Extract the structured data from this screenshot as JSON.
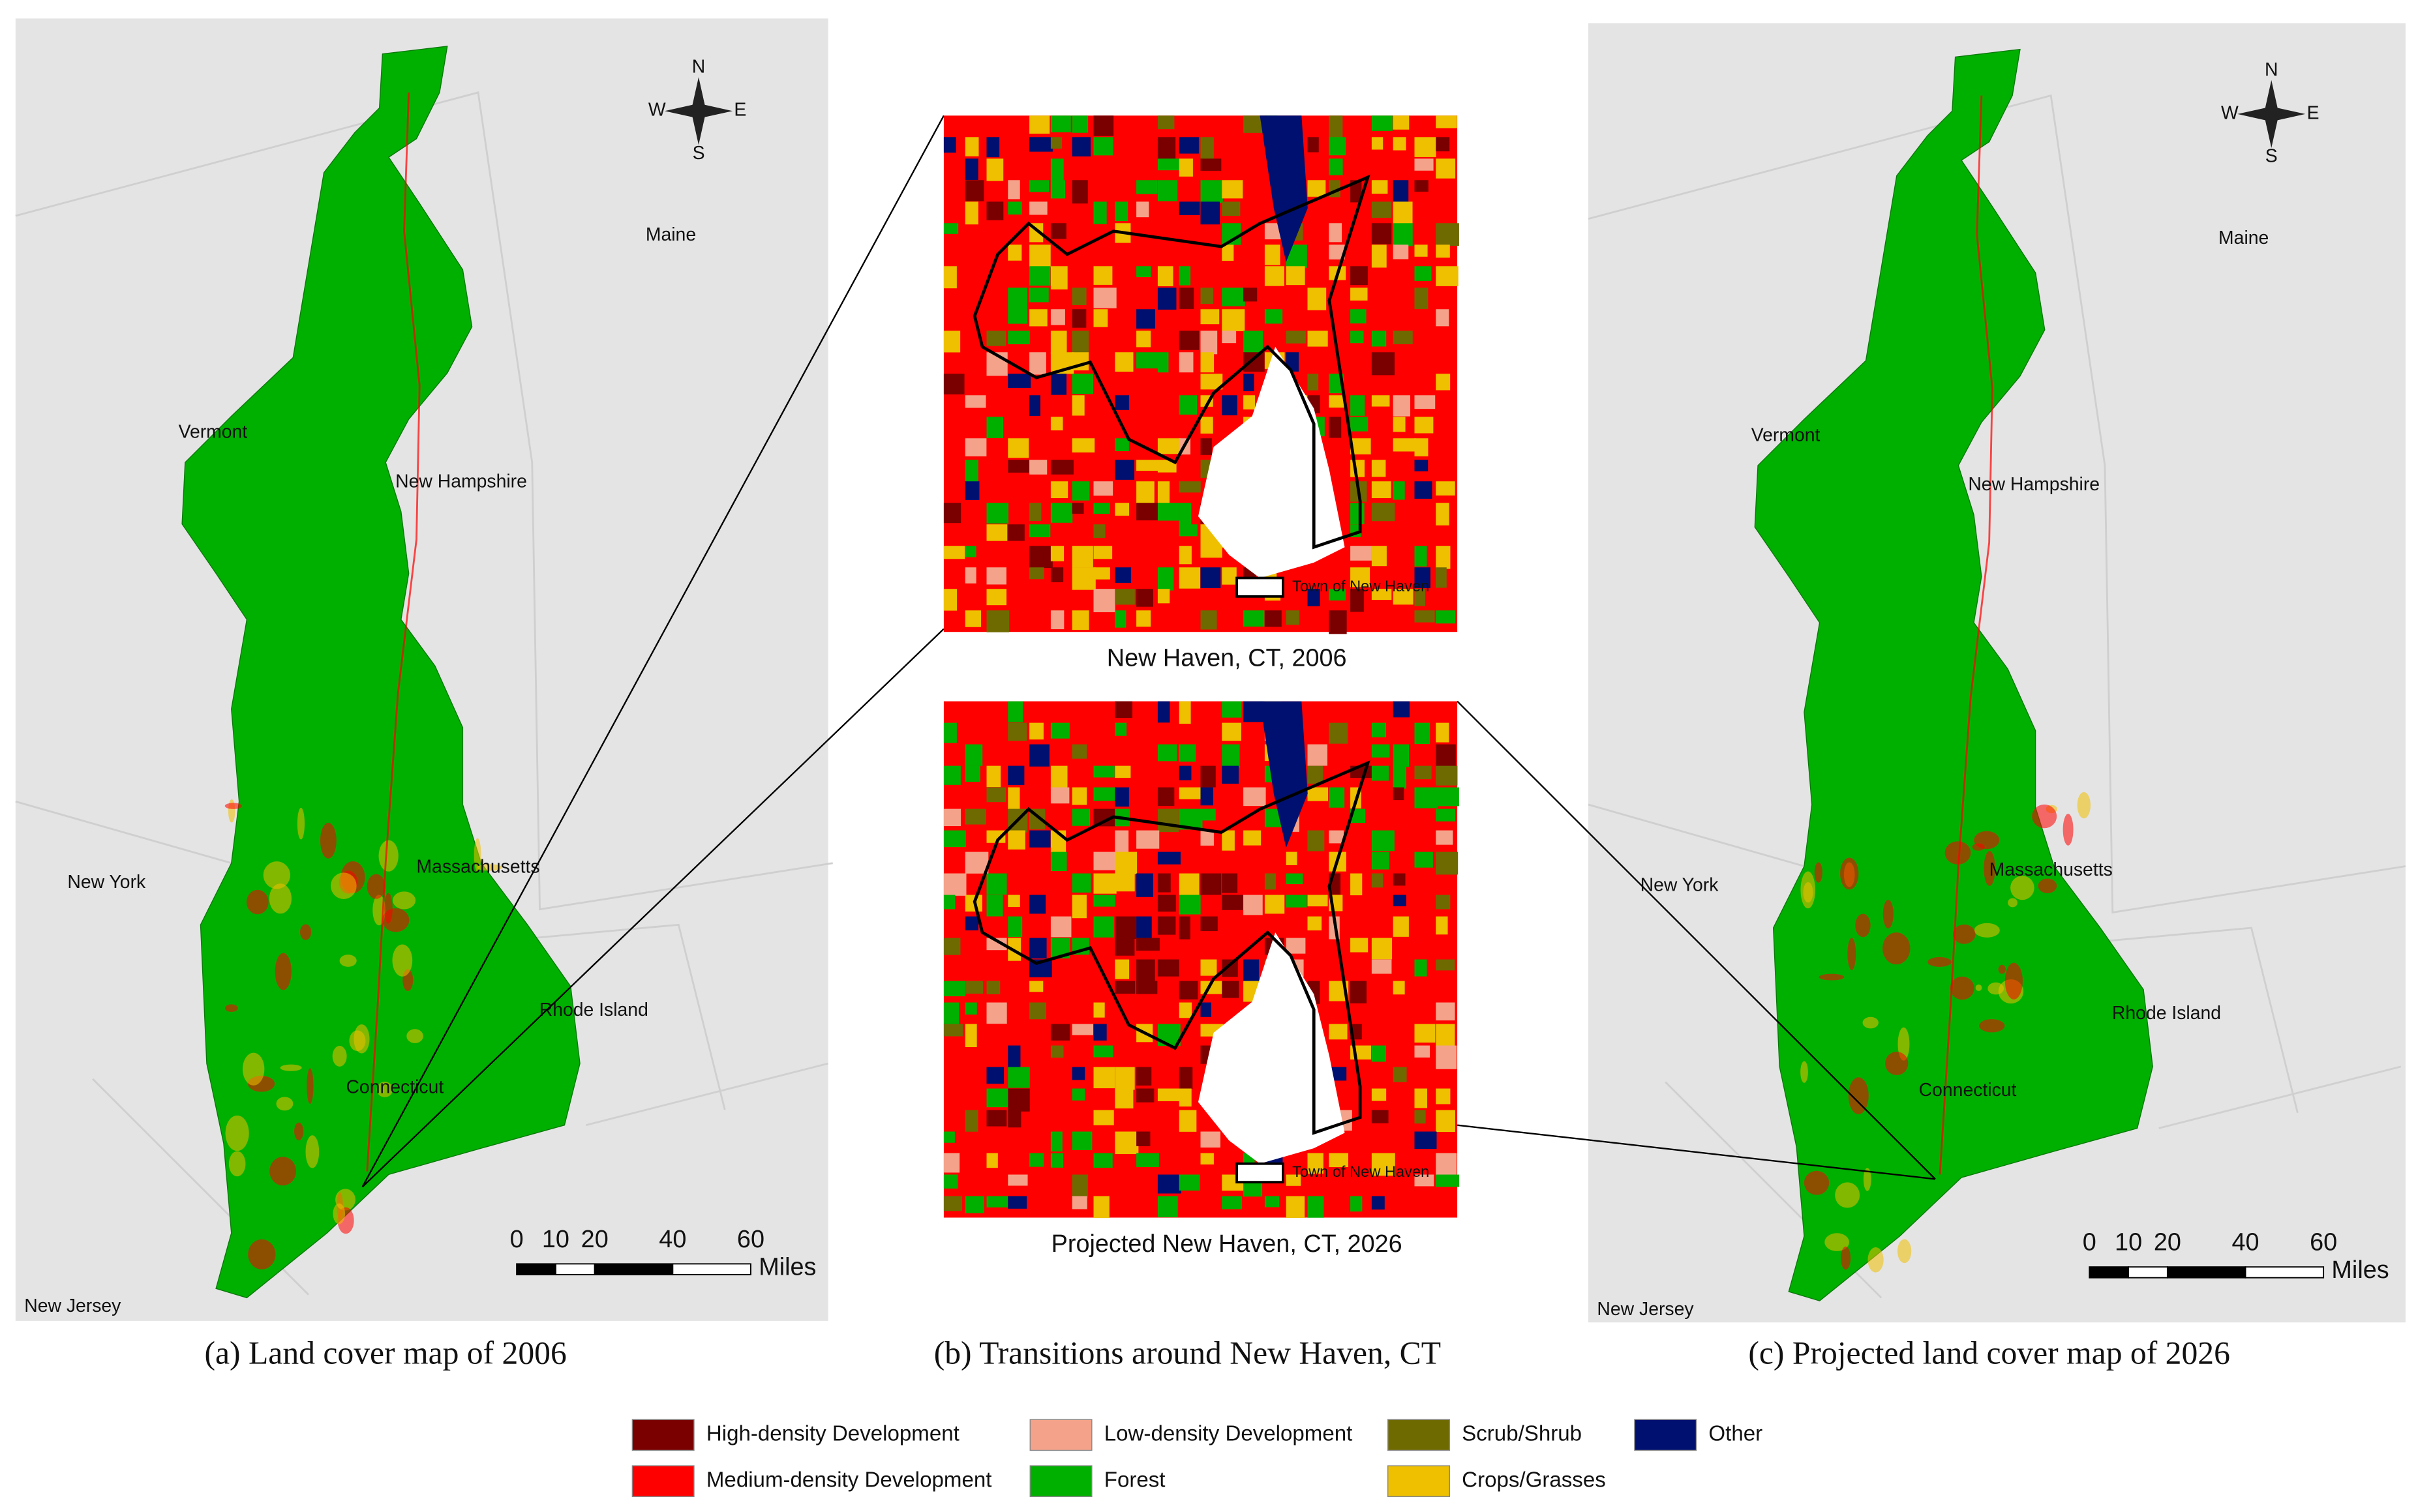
{
  "panels": [
    {
      "caption": "(a)  Land cover map of 2006",
      "labels": [
        "Maine",
        "Vermont",
        "New Hampshire",
        "New York",
        "Massachusetts",
        "Rhode Island",
        "Connecticut",
        "New Jersey"
      ],
      "compass": {
        "n": "N",
        "s": "S",
        "e": "E",
        "w": "W"
      },
      "scale": {
        "ticks": [
          0,
          10,
          20,
          40,
          60
        ],
        "unit": "Miles"
      }
    },
    {
      "caption": "(c)  Projected land cover map of 2026",
      "labels": [
        "Maine",
        "Vermont",
        "New Hampshire",
        "New York",
        "Massachusetts",
        "Rhode Island",
        "Connecticut",
        "New Jersey"
      ],
      "compass": {
        "n": "N",
        "s": "S",
        "e": "E",
        "w": "W"
      },
      "scale": {
        "ticks": [
          0,
          10,
          20,
          40,
          60
        ],
        "unit": "Miles"
      }
    }
  ],
  "insets": {
    "caption": "(b) Transitions around New Haven, CT",
    "maps": [
      {
        "title": "New Haven, CT, 2006",
        "outline_label": "Town of New Haven"
      },
      {
        "title": "Projected New Haven, CT, 2026",
        "outline_label": "Town of New Haven"
      }
    ]
  },
  "legend": [
    {
      "label": "High-density Development",
      "color": "#7a0000"
    },
    {
      "label": "Low-density Development",
      "color": "#f4a38a"
    },
    {
      "label": "Scrub/Shrub",
      "color": "#6f6a00"
    },
    {
      "label": "Other",
      "color": "#001070"
    },
    {
      "label": "Medium-density Development",
      "color": "#ff0000"
    },
    {
      "label": "Forest",
      "color": "#00b000"
    },
    {
      "label": "Crops/Grasses",
      "color": "#eec000"
    }
  ]
}
